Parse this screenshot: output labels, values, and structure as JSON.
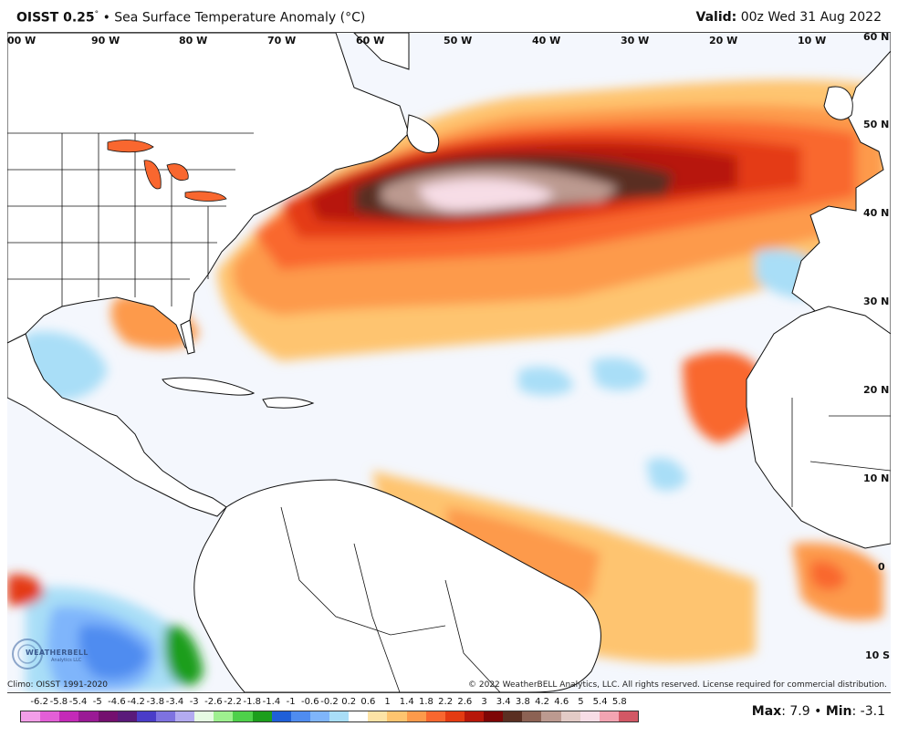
{
  "header": {
    "title": "OISST 0.25",
    "degree": "°",
    "bullet": "•",
    "subtitle": "Sea Surface Temperature Anomaly (°C)",
    "valid_label": "Valid:",
    "valid_time": "00z Wed 31 Aug 2022"
  },
  "map": {
    "longitude_labels": [
      "00 W",
      "90 W",
      "80 W",
      "70 W",
      "60 W",
      "50 W",
      "40 W",
      "30 W",
      "20 W",
      "10 W",
      "60 N"
    ],
    "latitude_labels": [
      "50 N",
      "40 N",
      "30 N",
      "20 N",
      "10 N",
      "0",
      "10 S"
    ],
    "logo_text": "WEATHERBELL",
    "logo_sub": "Analytics LLC"
  },
  "footer": {
    "climo": "Climo: OISST 1991-2020",
    "copyright": "© 2022 WeatherBELL Analytics, LLC. All rights reserved. License required for commercial distribution."
  },
  "legend": {
    "ticks": [
      "-6.2",
      "-5.8",
      "-5.4",
      "-5",
      "-4.6",
      "-4.2",
      "-3.8",
      "-3.4",
      "-3",
      "-2.6",
      "-2.2",
      "-1.8",
      "-1.4",
      "-1",
      "-0.6",
      "-0.2",
      "0.2",
      "0.6",
      "1",
      "1.4",
      "1.8",
      "2.2",
      "2.6",
      "3",
      "3.4",
      "3.8",
      "4.2",
      "4.6",
      "5",
      "5.4",
      "5.8"
    ],
    "colors": [
      "#f39ee8",
      "#e35fd7",
      "#c42ab8",
      "#9a1a95",
      "#74106f",
      "#5a1a7a",
      "#4a3cc8",
      "#7e72e0",
      "#b3abf0",
      "#e6fbe3",
      "#9ef08f",
      "#4ed04a",
      "#1c9e1c",
      "#1f5fd8",
      "#4f8cf0",
      "#7fb5fb",
      "#a9def7",
      "#ffffff",
      "#fde3a6",
      "#fec46f",
      "#fd9a4b",
      "#f9672f",
      "#e43b12",
      "#b7170a",
      "#7e0606",
      "#5a2f22",
      "#8c6254",
      "#bc9a90",
      "#e2cbc6",
      "#f7dde6",
      "#f3a4b2",
      "#d25865"
    ],
    "max_label": "Max",
    "max_value": ": 7.9",
    "separator": "•",
    "min_label": "Min",
    "min_value": ": -3.1"
  }
}
